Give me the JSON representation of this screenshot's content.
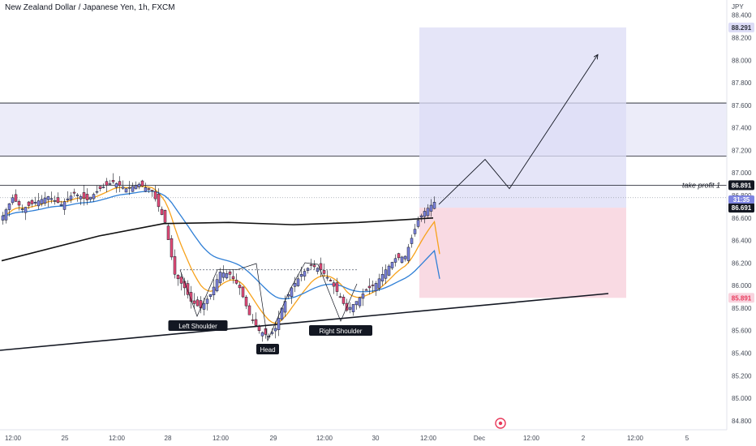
{
  "header": {
    "title": "New Zealand Dollar / Japanese Yen, 1h, FXCM",
    "currency": "JPY"
  },
  "colors": {
    "up": "#26a69a",
    "down": "#ef5350",
    "up_body": "#7e85e0",
    "down_body": "#e84d7a",
    "ema_fast": "#f7a21b",
    "ema_slow": "#2f7fd6",
    "ema_long": "#111111",
    "target_zone": "#dcdcf6",
    "stop_zone": "#f8d3de",
    "resistance_zone": "#ececf9"
  },
  "chart_data": {
    "type": "candlestick",
    "y_axis": {
      "ticks": [
        "88.400",
        "88.200",
        "88.000",
        "87.800",
        "87.600",
        "87.400",
        "87.200",
        "87.000",
        "86.800",
        "86.600",
        "86.400",
        "86.200",
        "86.000",
        "85.800",
        "85.600",
        "85.400",
        "85.200",
        "85.000",
        "84.800"
      ],
      "ylim": [
        84.72,
        88.52
      ]
    },
    "x_axis": {
      "ticks": [
        "12:00",
        "25",
        "12:00",
        "28",
        "12:00",
        "29",
        "12:00",
        "30",
        "12:00",
        "Dec",
        "12:00",
        "2",
        "12:00",
        "5"
      ]
    },
    "price_tags": [
      {
        "label": "88.291",
        "value": 88.291,
        "kind": "target"
      },
      {
        "label": "86.891",
        "value": 86.891,
        "kind": "take-profit"
      },
      {
        "label": "86.691",
        "value": 86.691,
        "kind": "entry"
      },
      {
        "label": "85.891",
        "value": 85.891,
        "kind": "stop"
      }
    ],
    "current_price": {
      "label": "86.691",
      "value": 86.691,
      "countdown": "31:35"
    },
    "take_profit_label": "take profit 1",
    "patterns": [
      {
        "label": "Left Shoulder",
        "price": 85.72
      },
      {
        "label": "Head",
        "price": 85.48
      },
      {
        "label": "Right Shoulder",
        "price": 85.66
      }
    ],
    "neckline": 86.14,
    "resistance_zone": [
      87.15,
      87.62
    ],
    "position": {
      "entry": 86.691,
      "target": 88.291,
      "stop": 85.891
    },
    "projection": [
      {
        "t": 0,
        "price": 86.72
      },
      {
        "t": 1,
        "price": 87.12
      },
      {
        "t": 2,
        "price": 86.86
      },
      {
        "t": 3,
        "price": 88.05
      }
    ]
  }
}
